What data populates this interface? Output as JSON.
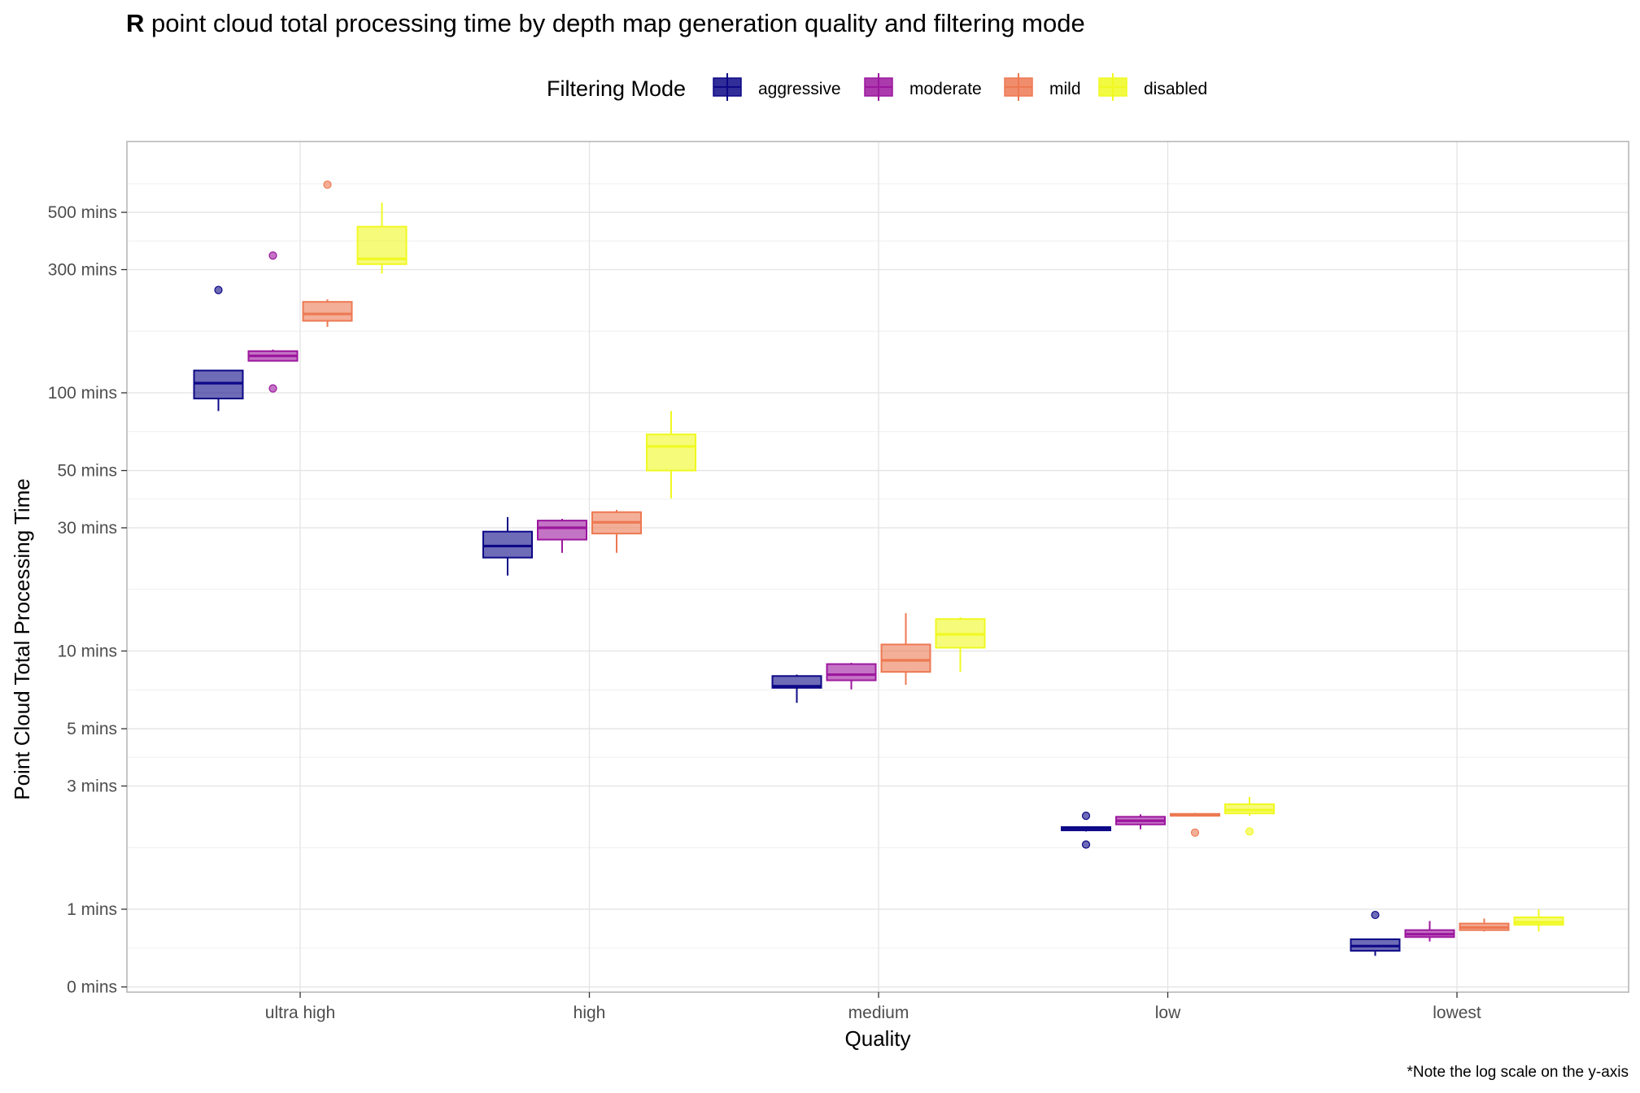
{
  "chart_data": {
    "type": "boxplot",
    "title_bold": "R",
    "title_rest": " point cloud total processing time by depth map generation quality and filtering mode",
    "xlabel": "Quality",
    "ylabel": "Point Cloud Total Processing Time",
    "caption": "*Note the log scale on the y-axis",
    "y_scale": "log",
    "y_ticks": [
      {
        "value": 0.5,
        "label": "0 mins"
      },
      {
        "value": 1,
        "label": "1 mins"
      },
      {
        "value": 3,
        "label": "3 mins"
      },
      {
        "value": 5,
        "label": "5 mins"
      },
      {
        "value": 10,
        "label": "10 mins"
      },
      {
        "value": 30,
        "label": "30 mins"
      },
      {
        "value": 50,
        "label": "50 mins"
      },
      {
        "value": 100,
        "label": "100 mins"
      },
      {
        "value": 300,
        "label": "300 mins"
      },
      {
        "value": 500,
        "label": "500 mins"
      }
    ],
    "grid": true,
    "legend": {
      "title": "Filtering Mode",
      "position": "top",
      "entries": [
        {
          "name": "aggressive",
          "color": "#0d0887"
        },
        {
          "name": "moderate",
          "color": "#9c179e"
        },
        {
          "name": "mild",
          "color": "#ed7953"
        },
        {
          "name": "disabled",
          "color": "#f0f921"
        }
      ]
    },
    "categories": [
      "ultra high",
      "high",
      "medium",
      "low",
      "lowest"
    ],
    "series": [
      {
        "name": "aggressive",
        "color": "#0d0887",
        "boxes": [
          {
            "lower": 85,
            "q1": 95,
            "median": 109,
            "q3": 122,
            "upper": 122,
            "outliers": [
              250
            ]
          },
          {
            "lower": 19.6,
            "q1": 23,
            "median": 25.5,
            "q3": 29,
            "upper": 33,
            "outliers": []
          },
          {
            "lower": 6.3,
            "q1": 7.2,
            "median": 7.3,
            "q3": 8,
            "upper": 8.1,
            "outliers": []
          },
          {
            "lower": 2.0,
            "q1": 2.02,
            "median": 2.06,
            "q3": 2.08,
            "upper": 2.08,
            "outliers": [
              2.3,
              1.78
            ]
          },
          {
            "lower": 0.66,
            "q1": 0.69,
            "median": 0.72,
            "q3": 0.765,
            "upper": 0.765,
            "outliers": [
              0.95
            ]
          }
        ]
      },
      {
        "name": "moderate",
        "color": "#9c179e",
        "boxes": [
          {
            "lower": 137,
            "q1": 133,
            "median": 139,
            "q3": 145,
            "upper": 147,
            "outliers": [
              340,
              104
            ]
          },
          {
            "lower": 24,
            "q1": 27,
            "median": 30,
            "q3": 32,
            "upper": 32.5,
            "outliers": []
          },
          {
            "lower": 7.1,
            "q1": 7.7,
            "median": 8.1,
            "q3": 8.9,
            "upper": 9.0,
            "outliers": []
          },
          {
            "lower": 2.04,
            "q1": 2.13,
            "median": 2.2,
            "q3": 2.28,
            "upper": 2.33,
            "outliers": []
          },
          {
            "lower": 0.75,
            "q1": 0.78,
            "median": 0.8,
            "q3": 0.83,
            "upper": 0.9,
            "outliers": []
          }
        ]
      },
      {
        "name": "mild",
        "color": "#ed7953",
        "boxes": [
          {
            "lower": 180,
            "q1": 190,
            "median": 202,
            "q3": 225,
            "upper": 230,
            "outliers": [
              640
            ]
          },
          {
            "lower": 24,
            "q1": 28.5,
            "median": 31.5,
            "q3": 34.5,
            "upper": 35.2,
            "outliers": []
          },
          {
            "lower": 7.4,
            "q1": 8.3,
            "median": 9.2,
            "q3": 10.6,
            "upper": 14,
            "outliers": []
          },
          {
            "lower": 2.3,
            "q1": 2.3,
            "median": 2.32,
            "q3": 2.34,
            "upper": 2.36,
            "outliers": [
              1.98
            ]
          },
          {
            "lower": 0.82,
            "q1": 0.83,
            "median": 0.85,
            "q3": 0.88,
            "upper": 0.92,
            "outliers": []
          }
        ]
      },
      {
        "name": "disabled",
        "color": "#f0f921",
        "boxes": [
          {
            "lower": 290,
            "q1": 315,
            "median": 330,
            "q3": 440,
            "upper": 545,
            "outliers": []
          },
          {
            "lower": 39,
            "q1": 50,
            "median": 62,
            "q3": 69,
            "upper": 85,
            "outliers": []
          },
          {
            "lower": 8.3,
            "q1": 10.3,
            "median": 11.6,
            "q3": 13.3,
            "upper": 13.5,
            "outliers": []
          },
          {
            "lower": 2.3,
            "q1": 2.35,
            "median": 2.42,
            "q3": 2.55,
            "upper": 2.72,
            "outliers": [
              2.0
            ]
          },
          {
            "lower": 0.82,
            "q1": 0.87,
            "median": 0.89,
            "q3": 0.93,
            "upper": 1.0,
            "outliers": []
          }
        ]
      }
    ]
  }
}
